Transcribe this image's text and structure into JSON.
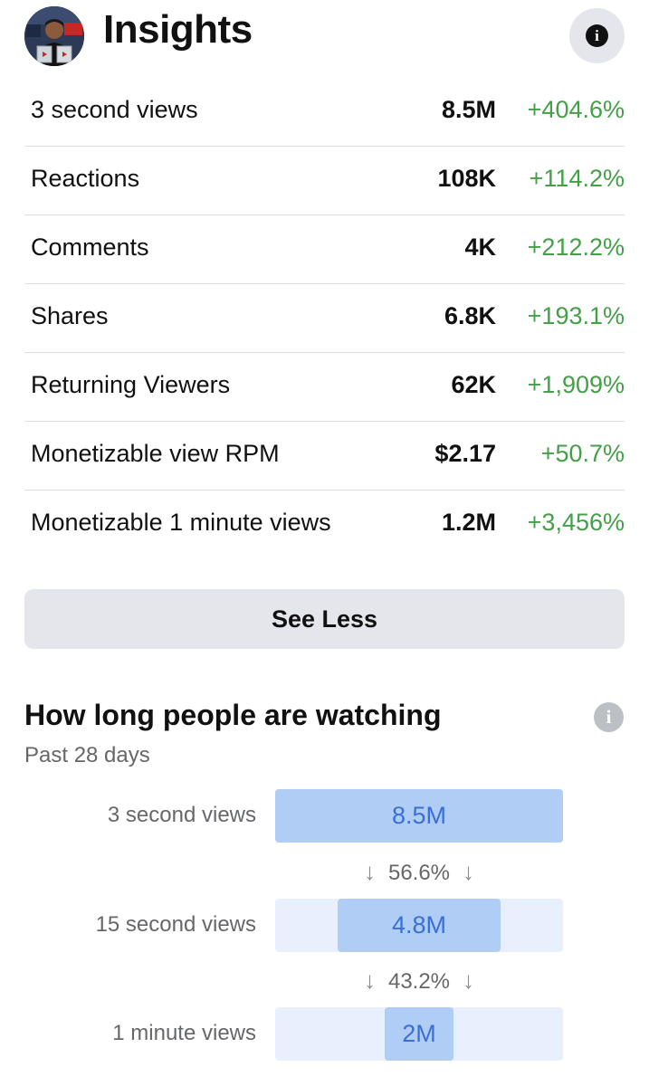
{
  "header": {
    "title": "Insights",
    "info_icon": "info-icon"
  },
  "metrics": [
    {
      "label": "3 second views",
      "value": "8.5M",
      "change": "+404.6%"
    },
    {
      "label": "Reactions",
      "value": "108K",
      "change": "+114.2%"
    },
    {
      "label": "Comments",
      "value": "4K",
      "change": "+212.2%"
    },
    {
      "label": "Shares",
      "value": "6.8K",
      "change": "+193.1%"
    },
    {
      "label": "Returning Viewers",
      "value": "62K",
      "change": "+1,909%"
    },
    {
      "label": "Monetizable view RPM",
      "value": "$2.17",
      "change": "+50.7%"
    },
    {
      "label": "Monetizable 1 minute views",
      "value": "1.2M",
      "change": "+3,456%"
    }
  ],
  "see_less_label": "See Less",
  "watching": {
    "title": "How long people are watching",
    "subtitle": "Past 28 days",
    "steps": [
      {
        "label": "3 second views",
        "value": "8.5M",
        "fraction": 1.0
      },
      {
        "label": "15 second views",
        "value": "4.8M",
        "fraction": 0.566
      },
      {
        "label": "1 minute views",
        "value": "2M",
        "fraction": 0.24
      }
    ],
    "dropoffs": [
      "56.6%",
      "43.2%"
    ],
    "arrow_icon": "down-arrow-icon"
  },
  "colors": {
    "positive_change": "#43a047",
    "bar_fill": "#b0cdf6",
    "bar_track": "#e8f0fd",
    "bar_text": "#3a6fd6",
    "button_bg": "#e4e6eb"
  }
}
